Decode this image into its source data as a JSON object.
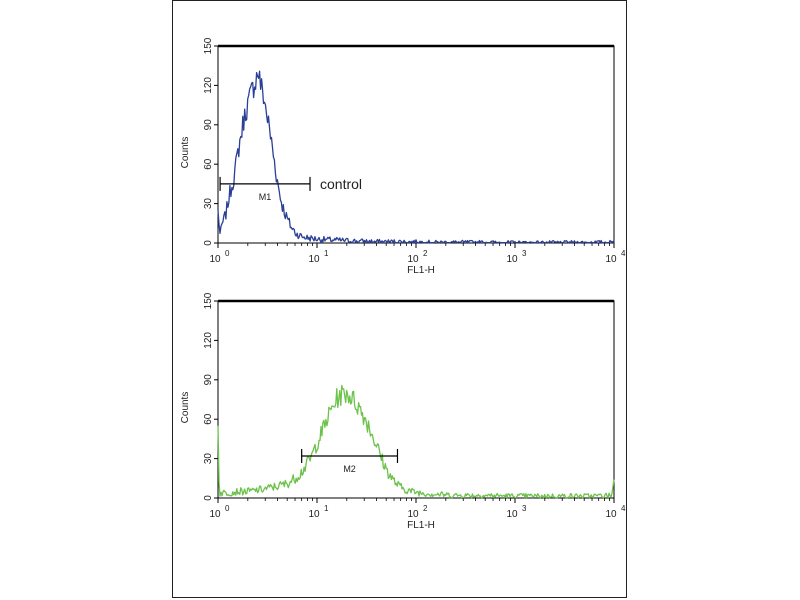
{
  "chart_data": [
    {
      "type": "line",
      "subtype": "flow-cytometry-histogram",
      "xlabel": "FL1-H",
      "ylabel": "Counts",
      "xscale": "log",
      "xlim": [
        1,
        10000
      ],
      "ylim": [
        0,
        150
      ],
      "xticks": [
        {
          "base": "10",
          "exp": "0"
        },
        {
          "base": "10",
          "exp": "1"
        },
        {
          "base": "10",
          "exp": "2"
        },
        {
          "base": "10",
          "exp": "3"
        },
        {
          "base": "10",
          "exp": "4"
        }
      ],
      "yticks": [
        "0",
        "30",
        "60",
        "90",
        "120",
        "150"
      ],
      "series": [
        {
          "color": "#2b3f96",
          "x": [
            1.0,
            1.05,
            1.1,
            1.2,
            1.3,
            1.45,
            1.6,
            1.8,
            2.0,
            2.2,
            2.4,
            2.55,
            2.7,
            2.85,
            3.0,
            3.2,
            3.45,
            3.7,
            4.0,
            4.4,
            4.9,
            5.5,
            6.2,
            7.0,
            8.0,
            10,
            13,
            18,
            25,
            40,
            70,
            150,
            400,
            1000,
            3000,
            9500,
            10000
          ],
          "y": [
            25,
            6,
            14,
            22,
            36,
            50,
            70,
            92,
            106,
            116,
            124,
            131,
            120,
            114,
            105,
            93,
            78,
            63,
            46,
            30,
            20,
            12,
            7,
            5,
            4,
            3,
            2.5,
            2,
            1.5,
            1,
            1,
            0.5,
            0.5,
            0.3,
            0.3,
            0.5,
            2
          ]
        }
      ],
      "markers": [
        {
          "label": "M1",
          "x_range": [
            1.05,
            8.5
          ],
          "y": 45
        }
      ],
      "annotations": [
        "control"
      ]
    },
    {
      "type": "line",
      "subtype": "flow-cytometry-histogram",
      "xlabel": "FL1-H",
      "ylabel": "Counts",
      "xscale": "log",
      "xlim": [
        1,
        10000
      ],
      "ylim": [
        0,
        150
      ],
      "xticks": [
        {
          "base": "10",
          "exp": "0"
        },
        {
          "base": "10",
          "exp": "1"
        },
        {
          "base": "10",
          "exp": "2"
        },
        {
          "base": "10",
          "exp": "3"
        },
        {
          "base": "10",
          "exp": "4"
        }
      ],
      "yticks": [
        "0",
        "30",
        "60",
        "90",
        "120",
        "150"
      ],
      "series": [
        {
          "color": "#6cc24a",
          "x": [
            1.0,
            1.03,
            1.1,
            1.3,
            1.6,
            2.0,
            2.5,
            3.0,
            4.0,
            5.0,
            6.0,
            7.0,
            8.0,
            9.0,
            10,
            11.5,
            13,
            14.5,
            16,
            18,
            20,
            22,
            25,
            28,
            32,
            36,
            40,
            45,
            50,
            57,
            65,
            75,
            90,
            110,
            150,
            250,
            500,
            1000,
            2500,
            6000,
            9500,
            10000
          ],
          "y": [
            55,
            3,
            4,
            4,
            5,
            5,
            6,
            7,
            9,
            11,
            15,
            20,
            26,
            33,
            42,
            52,
            62,
            70,
            76,
            79,
            80,
            77,
            72,
            66,
            58,
            49,
            40,
            30,
            22,
            15,
            10,
            7,
            5,
            4,
            3,
            2,
            2,
            1.5,
            1.5,
            1.5,
            2,
            14
          ]
        }
      ],
      "markers": [
        {
          "label": "M2",
          "x_range": [
            7.0,
            65
          ],
          "y": 32
        }
      ],
      "annotations": []
    }
  ]
}
